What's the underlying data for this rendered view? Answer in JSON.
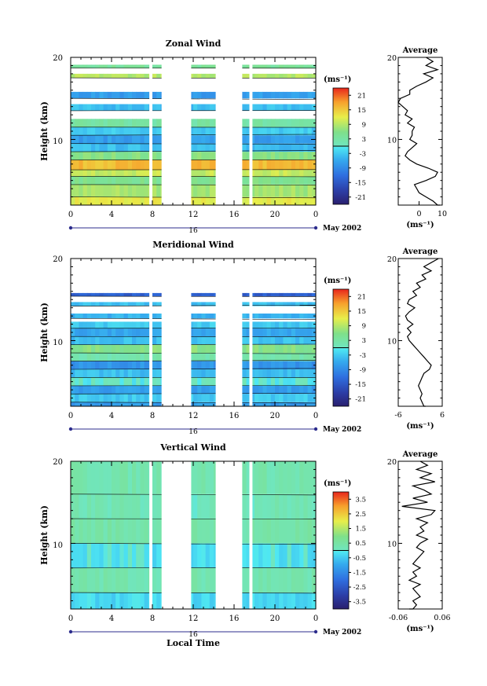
{
  "chart_data": [
    {
      "type": "heatmap",
      "title": "Zonal Wind",
      "ylabel": "Height (km)",
      "y_ticks": [
        "20",
        "10"
      ],
      "ylim": [
        2,
        20
      ],
      "x_ticks": [
        "0",
        "4",
        "8",
        "12",
        "16",
        "20",
        "0"
      ],
      "xlim": [
        0,
        24
      ],
      "date_label": "16",
      "month_label": "May 2002",
      "colorbar": {
        "unit": "(ms⁻¹)",
        "ticks": [
          "21",
          "15",
          "9",
          "3",
          "-3",
          "-9",
          "-15",
          "-21"
        ],
        "range": [
          -24,
          24
        ]
      },
      "gaps_hours": [
        [
          7.7,
          8.0
        ],
        [
          8.9,
          11.8
        ],
        [
          14.2,
          16.8
        ],
        [
          17.5,
          17.8
        ]
      ],
      "layers": [
        {
          "z0": 1.5,
          "z1": 3.0,
          "value": 12
        },
        {
          "z0": 3.0,
          "z1": 4.5,
          "value": 8
        },
        {
          "z0": 4.5,
          "z1": 5.5,
          "value": 5
        },
        {
          "z0": 5.5,
          "z1": 6.3,
          "value": 10
        },
        {
          "z0": 6.3,
          "z1": 7.5,
          "value": 16
        },
        {
          "z0": 7.5,
          "z1": 8.5,
          "value": 6
        },
        {
          "z0": 8.5,
          "z1": 9.5,
          "value": -4
        },
        {
          "z0": 9.5,
          "z1": 10.5,
          "value": -7
        },
        {
          "z0": 10.5,
          "z1": 11.5,
          "value": -3
        },
        {
          "z0": 11.5,
          "z1": 12.5,
          "value": 3
        },
        {
          "z0": 13.5,
          "z1": 14.3,
          "value": -4
        },
        {
          "z0": 15.0,
          "z1": 15.8,
          "value": -7
        },
        {
          "z0": 17.5,
          "z1": 18.0,
          "value": 9
        },
        {
          "z0": 18.7,
          "z1": 19.1,
          "value": 4
        }
      ],
      "profile": {
        "title": "Average",
        "xlabel": "(ms⁻¹)",
        "x_ticks": [
          "0",
          "10"
        ],
        "xlim": [
          -9,
          10
        ],
        "heights_km": [
          1.5,
          2.0,
          2.5,
          3.0,
          3.5,
          4.0,
          4.5,
          5.0,
          5.5,
          6.0,
          6.5,
          7.0,
          7.5,
          8.0,
          8.5,
          9.0,
          9.5,
          10.0,
          10.5,
          11.0,
          11.5,
          12.0,
          12.5,
          13.0,
          13.5,
          14.0,
          14.5,
          15.0,
          15.5,
          16.0,
          16.5,
          17.0,
          17.5,
          18.0,
          18.5,
          19.0,
          19.5,
          20.0
        ],
        "values": [
          9,
          8,
          6,
          3,
          0,
          -1,
          -2,
          3,
          7,
          8,
          4,
          -1,
          -4,
          -6,
          -5,
          -3,
          -1,
          -4,
          -3,
          -3,
          -2,
          -5,
          -3,
          -6,
          -5,
          -7,
          -9,
          -8,
          -4,
          -4,
          -1,
          3,
          6,
          2,
          8,
          3,
          6,
          3
        ]
      }
    },
    {
      "type": "heatmap",
      "title": "Meridional Wind",
      "ylabel": "Height (km)",
      "y_ticks": [
        "20",
        "10"
      ],
      "ylim": [
        2,
        20
      ],
      "x_ticks": [
        "0",
        "4",
        "8",
        "12",
        "16",
        "20",
        "0"
      ],
      "xlim": [
        0,
        24
      ],
      "date_label": "16",
      "month_label": "May 2002",
      "colorbar": {
        "unit": "(ms⁻¹)",
        "ticks": [
          "21",
          "15",
          "9",
          "3",
          "-3",
          "-9",
          "-15",
          "-21"
        ],
        "range": [
          -24,
          24
        ]
      },
      "gaps_hours": [
        [
          7.7,
          8.0
        ],
        [
          8.9,
          11.8
        ],
        [
          14.2,
          16.8
        ],
        [
          17.5,
          17.8
        ]
      ],
      "layers": [
        {
          "z0": 1.5,
          "z1": 2.5,
          "value": -7
        },
        {
          "z0": 2.5,
          "z1": 3.5,
          "value": -3
        },
        {
          "z0": 3.5,
          "z1": 4.5,
          "value": -7
        },
        {
          "z0": 4.5,
          "z1": 5.5,
          "value": 0
        },
        {
          "z0": 5.5,
          "z1": 6.5,
          "value": -4
        },
        {
          "z0": 6.5,
          "z1": 7.5,
          "value": -8
        },
        {
          "z0": 7.5,
          "z1": 8.5,
          "value": 2
        },
        {
          "z0": 8.5,
          "z1": 9.5,
          "value": 6
        },
        {
          "z0": 9.5,
          "z1": 10.5,
          "value": -4
        },
        {
          "z0": 10.5,
          "z1": 11.5,
          "value": -6
        },
        {
          "z0": 11.5,
          "z1": 12.3,
          "value": -3
        },
        {
          "z0": 12.7,
          "z1": 13.3,
          "value": -5
        },
        {
          "z0": 14.2,
          "z1": 14.7,
          "value": -4
        },
        {
          "z0": 15.4,
          "z1": 15.8,
          "value": -14
        }
      ],
      "profile": {
        "title": "Average",
        "xlabel": "(ms⁻¹)",
        "x_ticks": [
          "-6",
          "6"
        ],
        "xlim": [
          -6,
          6
        ],
        "heights_km": [
          1.5,
          2.0,
          2.5,
          3.0,
          3.5,
          4.0,
          4.5,
          5.0,
          5.5,
          6.0,
          6.5,
          7.0,
          7.5,
          8.0,
          8.5,
          9.0,
          9.5,
          10.0,
          10.5,
          11.0,
          11.5,
          12.0,
          12.5,
          13.0,
          13.5,
          14.0,
          14.5,
          15.0,
          15.5,
          16.0,
          16.5,
          17.0,
          17.5,
          18.0,
          18.5,
          19.0,
          19.5,
          20.0
        ],
        "values": [
          1.5,
          1.0,
          0.5,
          0.0,
          0.5,
          0.0,
          -0.5,
          0.0,
          0.5,
          1.0,
          2.5,
          3.0,
          2.0,
          1.0,
          0.0,
          -1.0,
          -2.0,
          -3.0,
          -3.5,
          -2.5,
          -3.5,
          -2.0,
          -3.5,
          -4.0,
          -3.0,
          -1.5,
          -3.5,
          -3.0,
          -1.0,
          -2.0,
          0.0,
          -1.0,
          1.5,
          0.5,
          3.0,
          1.0,
          3.0,
          5.0
        ]
      }
    },
    {
      "type": "heatmap",
      "title": "Vertical Wind",
      "ylabel": "Height (km)",
      "xlabel": "Local Time",
      "y_ticks": [
        "20",
        "10"
      ],
      "ylim": [
        2,
        20
      ],
      "x_ticks": [
        "0",
        "4",
        "8",
        "12",
        "16",
        "20",
        "0"
      ],
      "xlim": [
        0,
        24
      ],
      "date_label": "16",
      "month_label": "May 2002",
      "colorbar": {
        "unit": "(ms⁻¹)",
        "ticks": [
          "3.5",
          "2.5",
          "1.5",
          "0.5",
          "-0.5",
          "-1.5",
          "-2.5",
          "-3.5"
        ],
        "range": [
          -4,
          4
        ]
      },
      "gaps_hours": [
        [
          7.7,
          8.0
        ],
        [
          8.9,
          11.8
        ],
        [
          14.2,
          16.8
        ],
        [
          17.5,
          17.8
        ]
      ],
      "layers": [
        {
          "z0": 1.5,
          "z1": 4.0,
          "value": -0.3
        },
        {
          "z0": 4.0,
          "z1": 7.0,
          "value": 0.3
        },
        {
          "z0": 7.0,
          "z1": 10.0,
          "value": -0.2
        },
        {
          "z0": 10.0,
          "z1": 13.0,
          "value": 0.4
        },
        {
          "z0": 13.0,
          "z1": 16.0,
          "value": 0.2
        },
        {
          "z0": 16.0,
          "z1": 20.0,
          "value": 0.3
        }
      ],
      "profile": {
        "title": "Average",
        "xlabel": "(ms⁻¹)",
        "x_ticks": [
          "-0.06",
          "0.06"
        ],
        "xlim": [
          -0.06,
          0.06
        ],
        "heights_km": [
          1.5,
          2.0,
          2.5,
          3.0,
          3.5,
          4.0,
          4.5,
          5.0,
          5.5,
          6.0,
          6.5,
          7.0,
          7.5,
          8.0,
          8.5,
          9.0,
          9.5,
          10.0,
          10.5,
          11.0,
          11.5,
          12.0,
          12.5,
          13.0,
          13.5,
          14.0,
          14.5,
          15.0,
          15.5,
          16.0,
          16.5,
          17.0,
          17.5,
          18.0,
          18.5,
          19.0,
          19.5,
          20.0
        ],
        "values": [
          -0.03,
          -0.02,
          -0.01,
          -0.02,
          0.0,
          -0.01,
          -0.02,
          0.0,
          -0.03,
          -0.01,
          -0.02,
          0.0,
          -0.02,
          -0.01,
          0.0,
          0.01,
          -0.01,
          0.0,
          0.02,
          -0.01,
          0.01,
          0.0,
          0.02,
          -0.01,
          0.03,
          0.04,
          -0.05,
          0.02,
          -0.02,
          0.03,
          0.01,
          -0.02,
          0.04,
          0.0,
          0.03,
          -0.01,
          0.02,
          0.0
        ]
      }
    }
  ]
}
